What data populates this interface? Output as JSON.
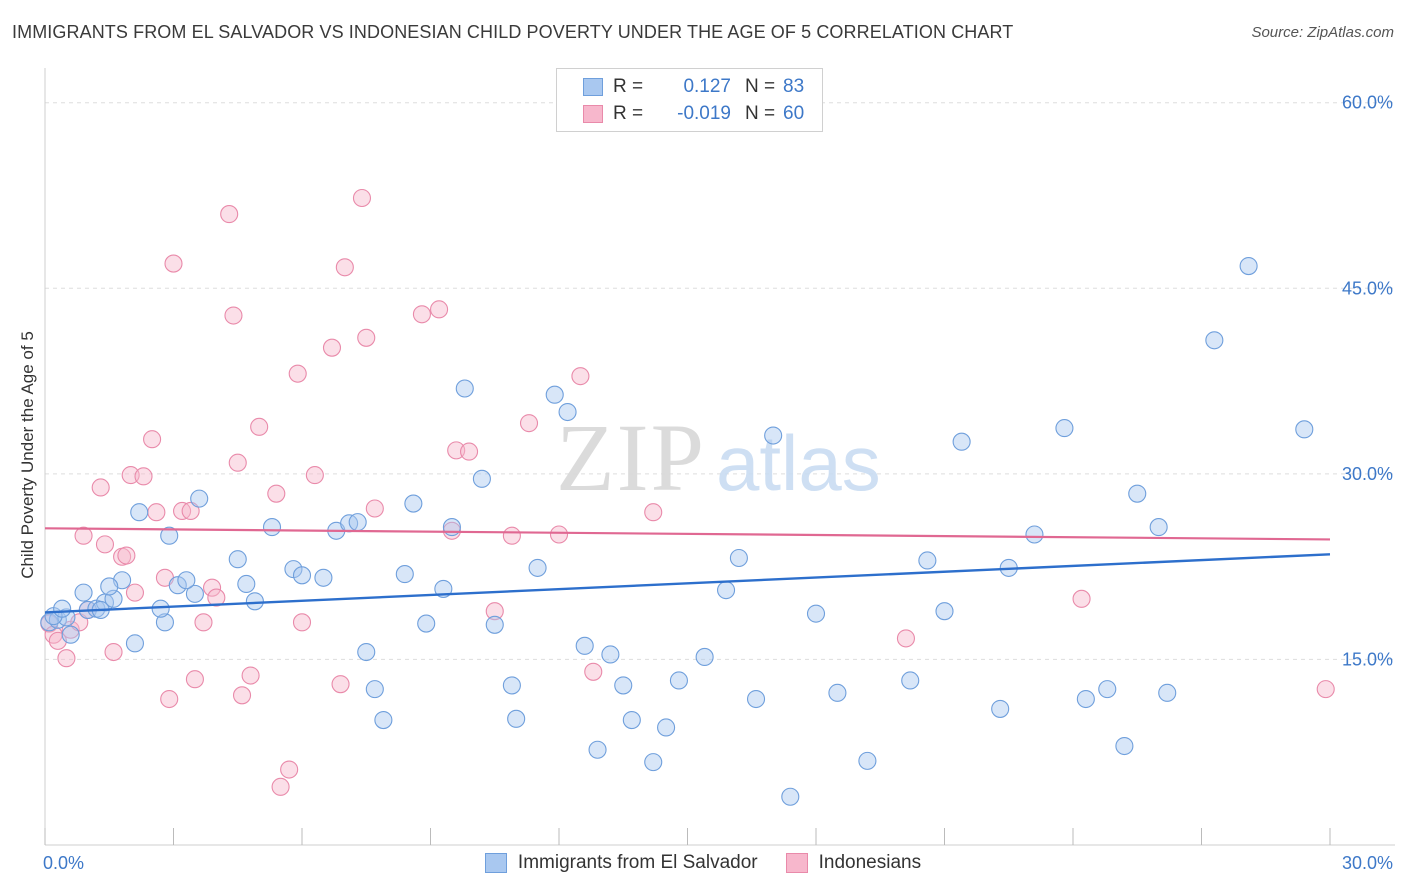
{
  "title": "IMMIGRANTS FROM EL SALVADOR VS INDONESIAN CHILD POVERTY UNDER THE AGE OF 5 CORRELATION CHART",
  "source": "Source: ZipAtlas.com",
  "watermark": {
    "zip": "ZIP",
    "atlas": "atlas"
  },
  "colors": {
    "blue_fill": "#a9c8f0",
    "blue_stroke": "#6f9fdc",
    "blue_line": "#2d6fcc",
    "pink_fill": "#f7b7cc",
    "pink_stroke": "#e98aaa",
    "pink_line": "#e06892",
    "tick": "#3d78c8",
    "grid": "#dddddd"
  },
  "stats": {
    "rows": [
      {
        "r_label": "R =",
        "r_value": "0.127",
        "n_label": "N =",
        "n_value": "83"
      },
      {
        "r_label": "R =",
        "r_value": "-0.019",
        "n_label": "N =",
        "n_value": "60"
      }
    ]
  },
  "legend": {
    "items": [
      "Immigrants from El Salvador",
      "Indonesians"
    ]
  },
  "chart_data": {
    "type": "scatter",
    "title": "IMMIGRANTS FROM EL SALVADOR VS INDONESIAN CHILD POVERTY UNDER THE AGE OF 5 CORRELATION CHART",
    "xlabel": "",
    "ylabel": "Child Poverty Under the Age of 5",
    "xlim": [
      0,
      30
    ],
    "ylim": [
      0,
      62
    ],
    "x_tick_labels": [
      "0.0%",
      "30.0%"
    ],
    "y_ticks": [
      15,
      30,
      45,
      60
    ],
    "y_tick_labels": [
      "15.0%",
      "30.0%",
      "45.0%",
      "60.0%"
    ],
    "grid": true,
    "legend_position": "bottom-center",
    "series": [
      {
        "name": "Immigrants from El Salvador",
        "color": "#a9c8f0",
        "trend": {
          "x": [
            0,
            30
          ],
          "y": [
            18.8,
            23.5
          ]
        },
        "points": [
          [
            0.1,
            18.0
          ],
          [
            0.3,
            18.2
          ],
          [
            0.5,
            18.4
          ],
          [
            0.6,
            17.0
          ],
          [
            0.9,
            20.4
          ],
          [
            1.0,
            19.0
          ],
          [
            1.2,
            19.1
          ],
          [
            1.4,
            19.6
          ],
          [
            2.2,
            26.9
          ],
          [
            1.6,
            19.9
          ],
          [
            2.8,
            18.0
          ],
          [
            1.8,
            21.4
          ],
          [
            1.5,
            20.9
          ],
          [
            0.2,
            18.5
          ],
          [
            0.4,
            19.1
          ],
          [
            2.1,
            16.3
          ],
          [
            2.7,
            19.1
          ],
          [
            2.9,
            25.0
          ],
          [
            3.1,
            21.0
          ],
          [
            3.5,
            20.3
          ],
          [
            3.3,
            21.4
          ],
          [
            3.6,
            28.0
          ],
          [
            4.5,
            23.1
          ],
          [
            4.7,
            21.1
          ],
          [
            4.9,
            19.7
          ],
          [
            5.3,
            25.7
          ],
          [
            5.8,
            22.3
          ],
          [
            6.0,
            21.8
          ],
          [
            6.5,
            21.6
          ],
          [
            6.8,
            25.4
          ],
          [
            7.1,
            26.0
          ],
          [
            7.3,
            26.1
          ],
          [
            7.5,
            15.6
          ],
          [
            7.7,
            12.6
          ],
          [
            7.9,
            10.1
          ],
          [
            8.4,
            21.9
          ],
          [
            8.6,
            27.6
          ],
          [
            8.9,
            17.9
          ],
          [
            9.3,
            20.7
          ],
          [
            9.5,
            25.7
          ],
          [
            9.8,
            36.9
          ],
          [
            10.2,
            29.6
          ],
          [
            10.5,
            17.8
          ],
          [
            10.9,
            12.9
          ],
          [
            11.0,
            10.2
          ],
          [
            11.5,
            22.4
          ],
          [
            11.9,
            36.4
          ],
          [
            12.2,
            35.0
          ],
          [
            12.6,
            16.1
          ],
          [
            12.9,
            7.7
          ],
          [
            13.2,
            15.4
          ],
          [
            13.5,
            12.9
          ],
          [
            13.7,
            10.1
          ],
          [
            14.2,
            6.7
          ],
          [
            14.5,
            9.5
          ],
          [
            14.8,
            13.3
          ],
          [
            15.4,
            15.2
          ],
          [
            15.9,
            20.6
          ],
          [
            16.2,
            23.2
          ],
          [
            16.6,
            11.8
          ],
          [
            17.0,
            33.1
          ],
          [
            17.4,
            3.9
          ],
          [
            18.0,
            18.7
          ],
          [
            18.5,
            12.3
          ],
          [
            19.2,
            6.8
          ],
          [
            20.2,
            13.3
          ],
          [
            20.6,
            23.0
          ],
          [
            21.0,
            18.9
          ],
          [
            21.4,
            32.6
          ],
          [
            22.3,
            11.0
          ],
          [
            22.5,
            22.4
          ],
          [
            23.1,
            25.1
          ],
          [
            23.8,
            33.7
          ],
          [
            24.3,
            11.8
          ],
          [
            24.8,
            12.6
          ],
          [
            25.2,
            8.0
          ],
          [
            25.5,
            28.4
          ],
          [
            26.0,
            25.7
          ],
          [
            26.2,
            12.3
          ],
          [
            27.3,
            40.8
          ],
          [
            28.1,
            46.8
          ],
          [
            29.4,
            33.6
          ],
          [
            1.3,
            19.0
          ]
        ]
      },
      {
        "name": "Indonesians",
        "color": "#f7b7cc",
        "trend": {
          "x": [
            0,
            30
          ],
          "y": [
            25.6,
            24.7
          ]
        },
        "points": [
          [
            0.1,
            17.9
          ],
          [
            0.2,
            17.0
          ],
          [
            0.3,
            16.5
          ],
          [
            0.5,
            15.1
          ],
          [
            0.6,
            17.4
          ],
          [
            0.8,
            18.0
          ],
          [
            0.9,
            25.0
          ],
          [
            1.0,
            19.0
          ],
          [
            1.3,
            28.9
          ],
          [
            1.4,
            24.3
          ],
          [
            1.6,
            15.6
          ],
          [
            1.8,
            23.3
          ],
          [
            1.9,
            23.4
          ],
          [
            2.0,
            29.9
          ],
          [
            2.1,
            20.4
          ],
          [
            2.3,
            29.8
          ],
          [
            2.5,
            32.8
          ],
          [
            2.6,
            26.9
          ],
          [
            2.8,
            21.6
          ],
          [
            2.9,
            11.8
          ],
          [
            3.0,
            47.0
          ],
          [
            3.2,
            27.0
          ],
          [
            3.4,
            27.0
          ],
          [
            3.5,
            13.4
          ],
          [
            3.7,
            18.0
          ],
          [
            3.9,
            20.8
          ],
          [
            4.0,
            20.0
          ],
          [
            4.3,
            51.0
          ],
          [
            4.4,
            42.8
          ],
          [
            4.5,
            30.9
          ],
          [
            4.6,
            12.1
          ],
          [
            4.8,
            13.7
          ],
          [
            5.0,
            33.8
          ],
          [
            5.4,
            28.4
          ],
          [
            5.5,
            4.7
          ],
          [
            5.7,
            6.1
          ],
          [
            5.9,
            38.1
          ],
          [
            6.0,
            18.0
          ],
          [
            6.3,
            29.9
          ],
          [
            6.7,
            40.2
          ],
          [
            6.9,
            13.0
          ],
          [
            7.0,
            46.7
          ],
          [
            7.4,
            52.3
          ],
          [
            7.5,
            41.0
          ],
          [
            7.7,
            27.2
          ],
          [
            8.8,
            42.9
          ],
          [
            9.2,
            43.3
          ],
          [
            9.6,
            31.9
          ],
          [
            9.9,
            31.8
          ],
          [
            10.5,
            18.9
          ],
          [
            10.9,
            25.0
          ],
          [
            11.3,
            34.1
          ],
          [
            12.5,
            37.9
          ],
          [
            12.8,
            14.0
          ],
          [
            9.5,
            25.4
          ],
          [
            12.0,
            25.1
          ],
          [
            14.2,
            26.9
          ],
          [
            20.1,
            16.7
          ],
          [
            24.2,
            19.9
          ],
          [
            29.9,
            12.6
          ]
        ]
      }
    ]
  }
}
